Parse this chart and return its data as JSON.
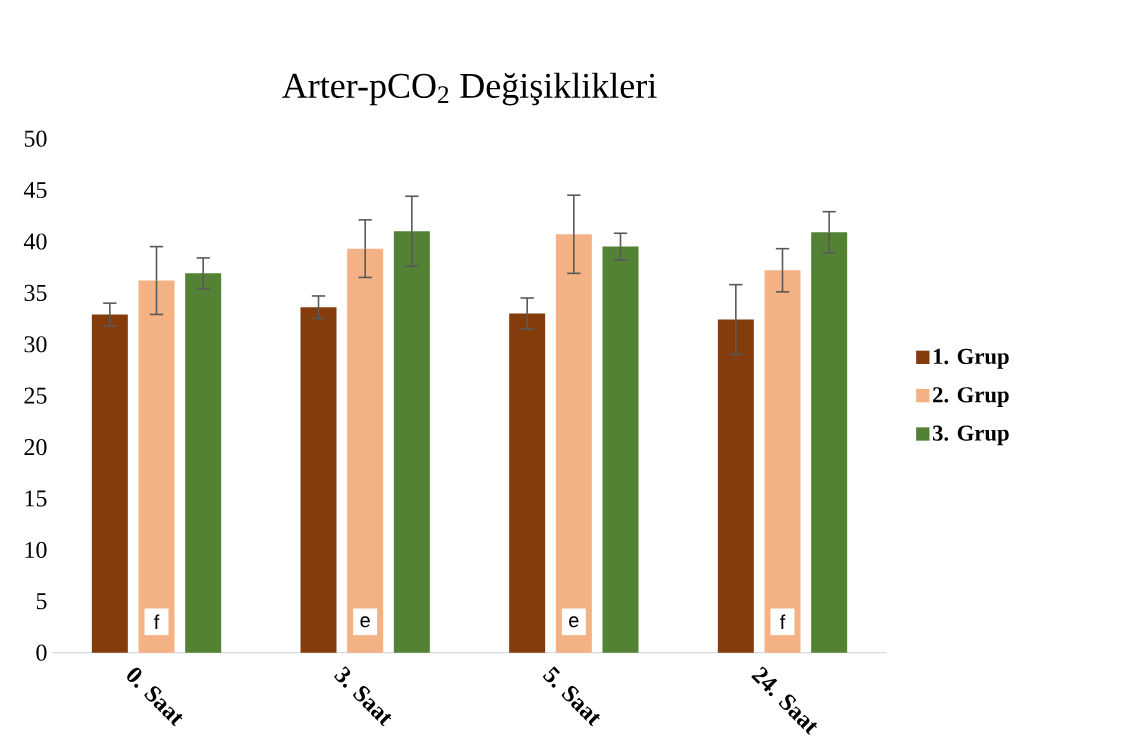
{
  "chart_data": {
    "type": "bar",
    "title": "Arter-pCO$_{2}$ Değişiklikleri",
    "categories": [
      "0. Saat",
      "3. Saat",
      "5. Saat",
      "24. Saat"
    ],
    "series": [
      {
        "name": "1. Grup",
        "color": "#843c0c",
        "values": [
          32.9,
          33.6,
          33.0,
          32.4
        ],
        "errors": [
          1.1,
          1.1,
          1.5,
          3.4
        ]
      },
      {
        "name": "2. Grup",
        "color": "#f4b183",
        "values": [
          36.2,
          39.3,
          40.7,
          37.2
        ],
        "errors": [
          3.3,
          2.8,
          3.8,
          2.1
        ]
      },
      {
        "name": "3. Grup",
        "color": "#548235",
        "values": [
          36.9,
          41.0,
          39.5,
          40.9
        ],
        "errors": [
          1.5,
          3.4,
          1.3,
          2.0
        ]
      }
    ],
    "ylim": [
      0,
      50
    ],
    "yticks": [
      0,
      5,
      10,
      15,
      20,
      25,
      30,
      35,
      40,
      45,
      50
    ],
    "legend": "right",
    "annotations": [
      "f",
      "e",
      "e",
      "f"
    ]
  }
}
